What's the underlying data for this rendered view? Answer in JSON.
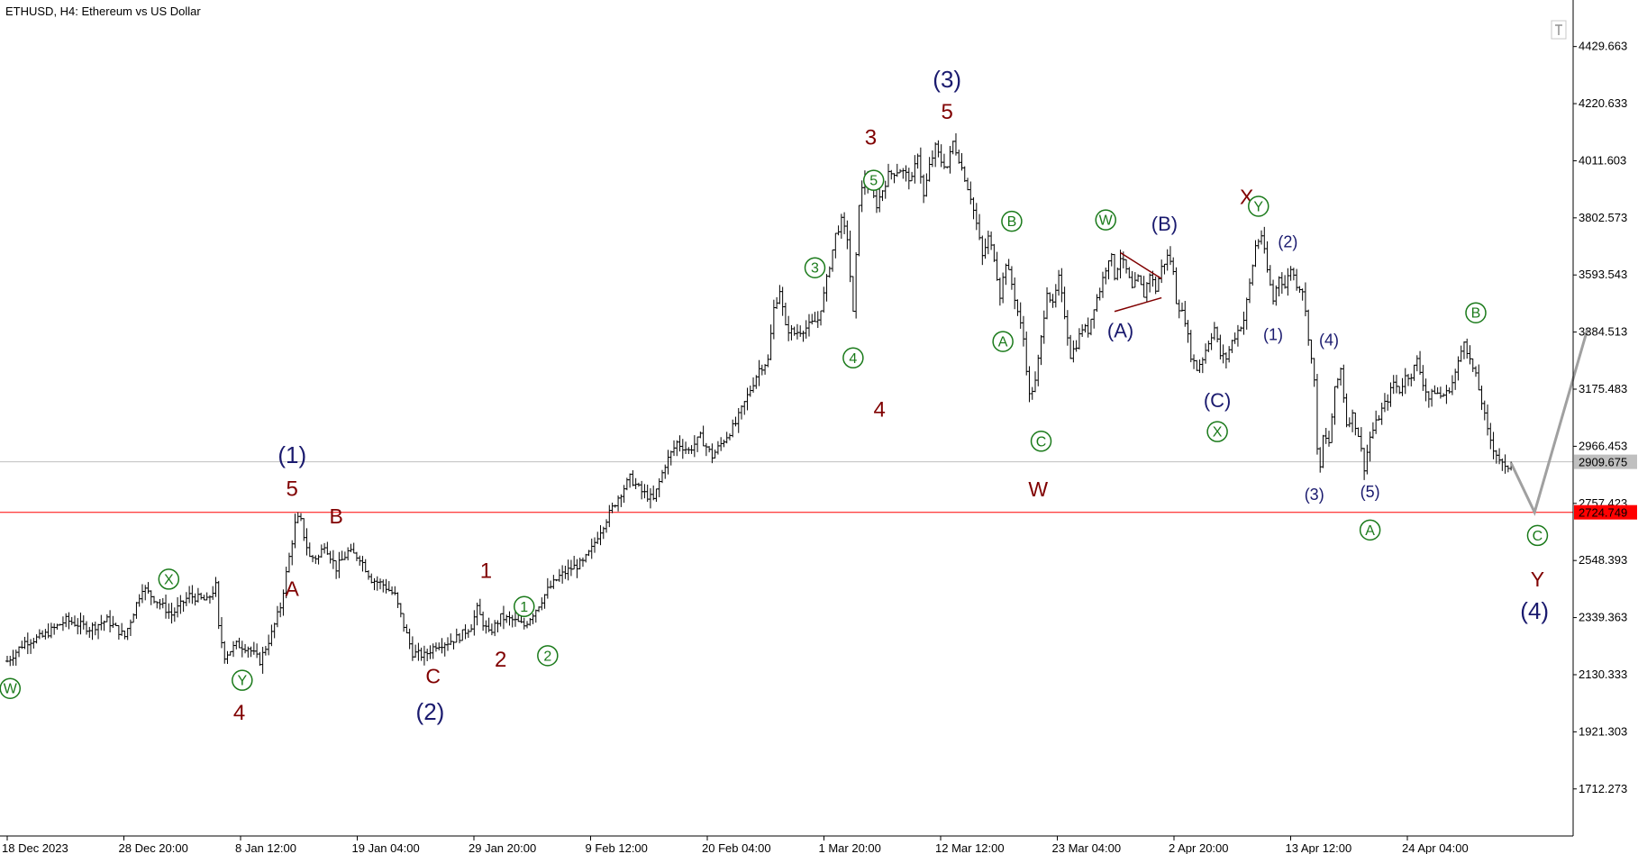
{
  "chart_data": {
    "type": "ohlc",
    "title": "ETHUSD, H4:  Ethereum vs US Dollar",
    "symbol": "ETHUSD",
    "timeframe": "H4",
    "instrument_name": "Ethereum vs US Dollar",
    "ylim": [
      1540,
      4600
    ],
    "grid": false,
    "y_ticks": [
      "4429.663",
      "4220.633",
      "4011.603",
      "3802.573",
      "3593.543",
      "3384.513",
      "3175.483",
      "2966.453",
      "2757.423",
      "2548.393",
      "2339.363",
      "2130.333",
      "1921.303",
      "1712.273"
    ],
    "x_ticks": [
      "18 Dec 2023",
      "28 Dec 20:00",
      "8 Jan 12:00",
      "19 Jan 04:00",
      "29 Jan 20:00",
      "9 Feb 12:00",
      "20 Feb 04:00",
      "1 Mar 20:00",
      "12 Mar 12:00",
      "23 Mar 04:00",
      "2 Apr 20:00",
      "13 Apr 12:00",
      "24 Apr 04:00"
    ],
    "current_price": {
      "value": 2909.675,
      "label": "2909.675",
      "line_color": "#c0c0c0"
    },
    "support_level": {
      "value": 2724.749,
      "label": "2724.749",
      "line_color": "#ff0000"
    },
    "price_path": [
      [
        0,
        2180
      ],
      [
        3,
        2250
      ],
      [
        6,
        2270
      ],
      [
        10,
        2330
      ],
      [
        14,
        2300
      ],
      [
        17,
        2330
      ],
      [
        20,
        2270
      ],
      [
        23,
        2450
      ],
      [
        26,
        2390
      ],
      [
        28,
        2350
      ],
      [
        31,
        2420
      ],
      [
        34,
        2400
      ],
      [
        35.5,
        2455
      ],
      [
        36,
        2300
      ],
      [
        37,
        2200
      ],
      [
        39,
        2240
      ],
      [
        41,
        2230
      ],
      [
        43,
        2180
      ],
      [
        45,
        2280
      ],
      [
        46.5,
        2380
      ],
      [
        48,
        2560
      ],
      [
        49,
        2680
      ],
      [
        49.8,
        2710
      ],
      [
        50.5,
        2640
      ],
      [
        51.5,
        2560
      ],
      [
        53,
        2560
      ],
      [
        54,
        2610
      ],
      [
        56,
        2520
      ],
      [
        58,
        2580
      ],
      [
        60,
        2560
      ],
      [
        62,
        2480
      ],
      [
        64,
        2460
      ],
      [
        66,
        2420
      ],
      [
        67.5,
        2310
      ],
      [
        69,
        2210
      ],
      [
        71,
        2200
      ],
      [
        73,
        2240
      ],
      [
        75,
        2250
      ],
      [
        77,
        2270
      ],
      [
        79,
        2310
      ],
      [
        80,
        2370
      ],
      [
        81,
        2320
      ],
      [
        82,
        2280
      ],
      [
        84,
        2340
      ],
      [
        86,
        2330
      ],
      [
        88,
        2310
      ],
      [
        90,
        2370
      ],
      [
        92,
        2440
      ],
      [
        94,
        2490
      ],
      [
        96,
        2520
      ],
      [
        98,
        2540
      ],
      [
        99.5,
        2590
      ],
      [
        100.5,
        2640
      ],
      [
        102,
        2700
      ],
      [
        104,
        2780
      ],
      [
        106,
        2850
      ],
      [
        108,
        2800
      ],
      [
        110,
        2770
      ],
      [
        112,
        2900
      ],
      [
        114,
        2980
      ],
      [
        116,
        2950
      ],
      [
        118,
        3000
      ],
      [
        120,
        2930
      ],
      [
        122,
        2990
      ],
      [
        124,
        3050
      ],
      [
        126,
        3150
      ],
      [
        128,
        3250
      ],
      [
        129.5,
        3280
      ],
      [
        130.5,
        3470
      ],
      [
        131.5,
        3540
      ],
      [
        132.5,
        3400
      ],
      [
        134,
        3380
      ],
      [
        136,
        3400
      ],
      [
        138,
        3430
      ],
      [
        139,
        3520
      ],
      [
        140,
        3630
      ],
      [
        141,
        3740
      ],
      [
        142,
        3790
      ],
      [
        143,
        3730
      ],
      [
        144,
        3450
      ],
      [
        145,
        3860
      ],
      [
        146,
        3950
      ],
      [
        148,
        3850
      ],
      [
        150,
        3960
      ],
      [
        152,
        3980
      ],
      [
        154,
        3940
      ],
      [
        155,
        4040
      ],
      [
        156,
        3880
      ],
      [
        157,
        3990
      ],
      [
        158,
        4060
      ],
      [
        159,
        4010
      ],
      [
        160,
        3990
      ],
      [
        161,
        4080
      ],
      [
        162,
        4020
      ],
      [
        164,
        3880
      ],
      [
        165,
        3780
      ],
      [
        166,
        3660
      ],
      [
        167,
        3730
      ],
      [
        168,
        3660
      ],
      [
        169,
        3520
      ],
      [
        170,
        3640
      ],
      [
        171,
        3560
      ],
      [
        172,
        3460
      ],
      [
        173,
        3360
      ],
      [
        174,
        3150
      ],
      [
        175,
        3200
      ],
      [
        176,
        3360
      ],
      [
        177,
        3540
      ],
      [
        178,
        3480
      ],
      [
        179,
        3580
      ],
      [
        180,
        3450
      ],
      [
        181,
        3300
      ],
      [
        182,
        3340
      ],
      [
        183,
        3400
      ],
      [
        184,
        3390
      ],
      [
        185,
        3480
      ],
      [
        186,
        3540
      ],
      [
        187,
        3620
      ],
      [
        187.8,
        3680
      ],
      [
        188.5,
        3590
      ],
      [
        189.5,
        3660
      ],
      [
        190.5,
        3610
      ],
      [
        191.5,
        3540
      ],
      [
        192.5,
        3580
      ],
      [
        193.5,
        3520
      ],
      [
        194.5,
        3600
      ],
      [
        195.5,
        3540
      ],
      [
        196.5,
        3620
      ],
      [
        197.5,
        3660
      ],
      [
        198.3,
        3640
      ],
      [
        199,
        3500
      ],
      [
        200.5,
        3430
      ],
      [
        201.5,
        3300
      ],
      [
        202.5,
        3250
      ],
      [
        203.5,
        3290
      ],
      [
        204.5,
        3350
      ],
      [
        205.5,
        3400
      ],
      [
        206.5,
        3300
      ],
      [
        207.5,
        3290
      ],
      [
        208.5,
        3350
      ],
      [
        209.5,
        3390
      ],
      [
        210.5,
        3430
      ],
      [
        211.5,
        3560
      ],
      [
        212.5,
        3700
      ],
      [
        213.5,
        3740
      ],
      [
        214.5,
        3610
      ],
      [
        215.5,
        3500
      ],
      [
        216.5,
        3590
      ],
      [
        217.5,
        3550
      ],
      [
        218.5,
        3620
      ],
      [
        219.5,
        3560
      ],
      [
        220.5,
        3540
      ],
      [
        221.5,
        3370
      ],
      [
        222.5,
        3200
      ],
      [
        223.3,
        2830
      ],
      [
        224,
        3000
      ],
      [
        225,
        2980
      ],
      [
        226,
        3170
      ],
      [
        227,
        3250
      ],
      [
        228,
        3050
      ],
      [
        229,
        3080
      ],
      [
        230,
        3010
      ],
      [
        231,
        2890
      ],
      [
        232,
        3000
      ],
      [
        233,
        3050
      ],
      [
        234,
        3100
      ],
      [
        235,
        3140
      ],
      [
        236,
        3200
      ],
      [
        237,
        3170
      ],
      [
        238,
        3220
      ],
      [
        239,
        3230
      ],
      [
        240,
        3280
      ],
      [
        241,
        3200
      ],
      [
        242,
        3140
      ],
      [
        243,
        3170
      ],
      [
        244,
        3150
      ],
      [
        245,
        3160
      ],
      [
        246,
        3200
      ],
      [
        247,
        3270
      ],
      [
        248,
        3360
      ],
      [
        249,
        3280
      ],
      [
        250,
        3220
      ],
      [
        251,
        3130
      ],
      [
        252,
        3020
      ],
      [
        253,
        2960
      ],
      [
        254,
        2920
      ],
      [
        255,
        2880
      ],
      [
        256,
        2905
      ]
    ],
    "projection": [
      [
        256,
        2905
      ],
      [
        260,
        2725
      ],
      [
        269,
        3395
      ]
    ],
    "wave_labels": [
      {
        "text": "(1)",
        "x": 48.5,
        "y": 2935,
        "color": "#1a1a6e",
        "size": 26
      },
      {
        "text": "5",
        "x": 48.5,
        "y": 2810,
        "color": "#800000",
        "size": 24
      },
      {
        "text": "B",
        "x": 56,
        "y": 2710,
        "color": "#800000",
        "size": 23
      },
      {
        "text": "A",
        "x": 48.5,
        "y": 2445,
        "color": "#800000",
        "size": 23
      },
      {
        "text": "4",
        "x": 39.5,
        "y": 1990,
        "color": "#800000",
        "size": 24
      },
      {
        "text": "(2)",
        "x": 72,
        "y": 1995,
        "color": "#1a1a6e",
        "size": 26
      },
      {
        "text": "C",
        "x": 72.5,
        "y": 2125,
        "color": "#800000",
        "size": 23
      },
      {
        "text": "1",
        "x": 81.5,
        "y": 2510,
        "color": "#800000",
        "size": 24
      },
      {
        "text": "2",
        "x": 84,
        "y": 2185,
        "color": "#800000",
        "size": 24
      },
      {
        "text": "(3)",
        "x": 160,
        "y": 4310,
        "color": "#1a1a6e",
        "size": 26
      },
      {
        "text": "5",
        "x": 160,
        "y": 4190,
        "color": "#800000",
        "size": 24
      },
      {
        "text": "3",
        "x": 147,
        "y": 4095,
        "color": "#800000",
        "size": 24
      },
      {
        "text": "4",
        "x": 148.5,
        "y": 3100,
        "color": "#800000",
        "size": 24
      },
      {
        "text": "W",
        "x": 175.5,
        "y": 2810,
        "color": "#800000",
        "size": 23
      },
      {
        "text": "X",
        "x": 211,
        "y": 3880,
        "color": "#800000",
        "size": 23
      },
      {
        "text": "Y",
        "x": 260.5,
        "y": 2480,
        "color": "#800000",
        "size": 23
      },
      {
        "text": "(4)",
        "x": 260,
        "y": 2365,
        "color": "#1a1a6e",
        "size": 26
      },
      {
        "text": "(A)",
        "x": 189.5,
        "y": 3390,
        "color": "#1a1a6e",
        "size": 22
      },
      {
        "text": "(B)",
        "x": 197,
        "y": 3780,
        "color": "#1a1a6e",
        "size": 22
      },
      {
        "text": "(C)",
        "x": 206,
        "y": 3135,
        "color": "#1a1a6e",
        "size": 22
      },
      {
        "text": "(1)",
        "x": 215.5,
        "y": 3375,
        "color": "#1a1a6e",
        "size": 18
      },
      {
        "text": "(2)",
        "x": 218,
        "y": 3715,
        "color": "#1a1a6e",
        "size": 18
      },
      {
        "text": "(3)",
        "x": 222.5,
        "y": 2790,
        "color": "#1a1a6e",
        "size": 18
      },
      {
        "text": "(4)",
        "x": 225,
        "y": 3355,
        "color": "#1a1a6e",
        "size": 18
      },
      {
        "text": "(5)",
        "x": 232,
        "y": 2800,
        "color": "#1a1a6e",
        "size": 18
      }
    ],
    "circled_labels": [
      {
        "text": "W",
        "x": 0.5,
        "y": 2080
      },
      {
        "text": "X",
        "x": 27.5,
        "y": 2480
      },
      {
        "text": "Y",
        "x": 40,
        "y": 2110
      },
      {
        "text": "1",
        "x": 88,
        "y": 2380
      },
      {
        "text": "2",
        "x": 92,
        "y": 2200
      },
      {
        "text": "3",
        "x": 137.5,
        "y": 3620
      },
      {
        "text": "4",
        "x": 144,
        "y": 3290
      },
      {
        "text": "5",
        "x": 147.5,
        "y": 3940
      },
      {
        "text": "A",
        "x": 169.5,
        "y": 3350
      },
      {
        "text": "B",
        "x": 171,
        "y": 3790
      },
      {
        "text": "C",
        "x": 176,
        "y": 2985
      },
      {
        "text": "W",
        "x": 187,
        "y": 3795
      },
      {
        "text": "X",
        "x": 206,
        "y": 3020
      },
      {
        "text": "Y",
        "x": 213,
        "y": 3845
      },
      {
        "text": "A",
        "x": 232,
        "y": 2660
      },
      {
        "text": "B",
        "x": 250,
        "y": 3455
      },
      {
        "text": "C",
        "x": 260.5,
        "y": 2640
      }
    ],
    "triangle_lines": [
      {
        "from": [
          189.5,
          3675
        ],
        "to": [
          196.5,
          3580
        ]
      },
      {
        "from": [
          188.5,
          3460
        ],
        "to": [
          196.5,
          3510
        ]
      }
    ],
    "colors": {
      "bars": "#000000",
      "projection": "#a0a0a0",
      "wave_navy": "#1a1a6e",
      "wave_maroon": "#800000",
      "circled_green": "#1a7a1a",
      "triangle": "#800000"
    }
  }
}
